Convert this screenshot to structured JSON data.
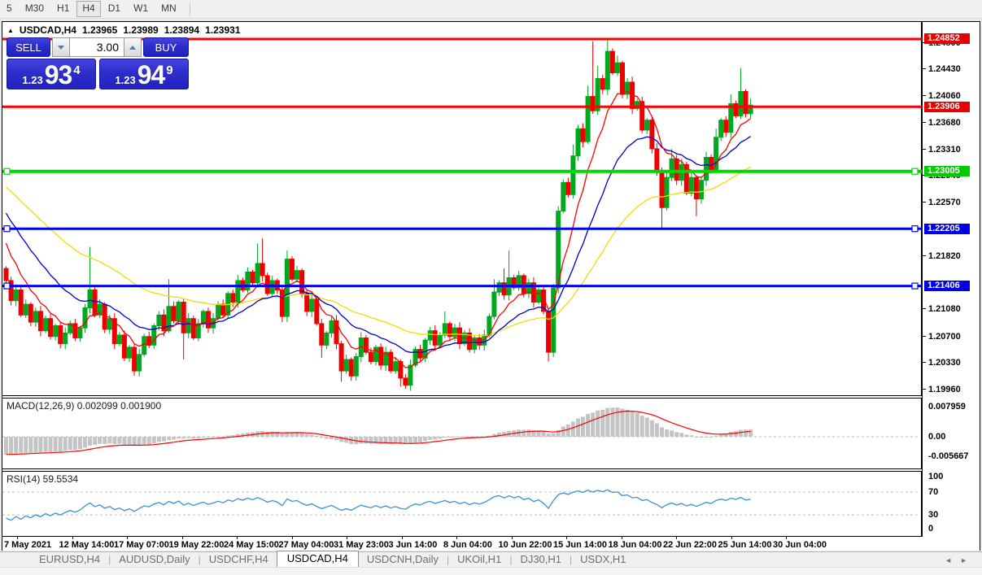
{
  "toolbar": {
    "buttons": [
      "5",
      "M30",
      "H1",
      "H4",
      "D1",
      "W1",
      "MN"
    ],
    "active": "H4"
  },
  "title": {
    "symbol": "USDCAD,H4",
    "open": "1.23965",
    "high": "1.23989",
    "low": "1.23894",
    "close": "1.23931"
  },
  "trade_panel": {
    "sell_label": "SELL",
    "buy_label": "BUY",
    "volume": "3.00",
    "sell_price": {
      "small": "1.23",
      "big": "93",
      "sup": "4"
    },
    "buy_price": {
      "small": "1.23",
      "big": "94",
      "sup": "9"
    }
  },
  "tabs": {
    "items": [
      {
        "label": "EURUSD,H4",
        "active": false
      },
      {
        "label": "AUDUSD,Daily",
        "active": false
      },
      {
        "label": "USDCHF,H4",
        "active": false
      },
      {
        "label": "USDCAD,H4",
        "active": true
      },
      {
        "label": "USDCNH,Daily",
        "active": false
      },
      {
        "label": "UKOil,H1",
        "active": false
      },
      {
        "label": "DJ30,H1",
        "active": false
      },
      {
        "label": "USDX,H1",
        "active": false
      }
    ],
    "scroll_left": "◄",
    "scroll_right": "►"
  },
  "colors": {
    "bull": "#00a81f",
    "bear": "#ee0000",
    "macd_bar": "#c4c4c4",
    "macd_signal": "#ff0000",
    "rsi_line": "#3a90d8",
    "level_dash": "#bdbdbd"
  },
  "chart_data": {
    "type": "candlestick",
    "symbol": "USDCAD",
    "timeframe": "H4",
    "price_axis": {
      "pmax": 1.2509,
      "pmin": 1.1988,
      "ticks": [
        {
          "label": "1.24800",
          "p": 1.248
        },
        {
          "label": "1.24430",
          "p": 1.2443
        },
        {
          "label": "1.24060",
          "p": 1.2406
        },
        {
          "label": "1.23680",
          "p": 1.2368
        },
        {
          "label": "1.23310",
          "p": 1.2331
        },
        {
          "label": "1.22940",
          "p": 1.2294
        },
        {
          "label": "1.22570",
          "p": 1.2257
        },
        {
          "label": "1.21820",
          "p": 1.2182
        },
        {
          "label": "1.21080",
          "p": 1.2108
        },
        {
          "label": "1.20700",
          "p": 1.207
        },
        {
          "label": "1.20330",
          "p": 1.2033
        },
        {
          "label": "1.19960",
          "p": 1.1996
        }
      ]
    },
    "x_labels": [
      "7 May 2021",
      "12 May 14:00",
      "17 May 07:00",
      "19 May 22:00",
      "24 May 15:00",
      "27 May 04:00",
      "31 May 23:00",
      "3 Jun 14:00",
      "8 Jun 04:00",
      "10 Jun 22:00",
      "15 Jun 14:00",
      "18 Jun 04:00",
      "22 Jun 22:00",
      "25 Jun 14:00",
      "30 Jun 04:00"
    ],
    "hlines": [
      {
        "price": 1.24852,
        "label": "1.24852",
        "color": "#ff0000",
        "badge": "#e80000",
        "width": 3,
        "selected": false
      },
      {
        "price": 1.23906,
        "label": "1.23906",
        "color": "#ff0000",
        "badge": "#e80000",
        "width": 3,
        "selected": false
      },
      {
        "price": 1.23005,
        "label": "1.23005",
        "color": "#00d800",
        "badge": "#00cc00",
        "width": 4,
        "selected": true
      },
      {
        "price": 1.22205,
        "label": "1.22205",
        "color": "#0000ff",
        "badge": "#0000e8",
        "width": 3,
        "selected": true
      },
      {
        "price": 1.21406,
        "label": "1.21406",
        "color": "#0000ff",
        "badge": "#0000e8",
        "width": 3,
        "selected": true
      }
    ],
    "moving_averages": [
      {
        "name": "slow-ma",
        "period": 45,
        "seed": 1.2285,
        "color": "#f0dc00"
      },
      {
        "name": "medium-ma",
        "period": 20,
        "seed": 1.2252,
        "color": "#0000c8"
      },
      {
        "name": "fast-ma",
        "period": 8,
        "seed": 1.2215,
        "color": "#ff0000"
      }
    ],
    "candles": {
      "first_open": 1.2165,
      "closes": [
        1.2148,
        1.212,
        1.2135,
        1.21,
        1.2115,
        1.209,
        1.2105,
        1.2078,
        1.2095,
        1.207,
        1.2085,
        1.206,
        1.2075,
        1.2088,
        1.2068,
        1.2082,
        1.211,
        1.2135,
        1.21,
        1.2115,
        1.208,
        1.2095,
        1.206,
        1.2072,
        1.204,
        1.2055,
        1.2022,
        1.2045,
        1.207,
        1.2058,
        1.2085,
        1.21,
        1.2078,
        1.2112,
        1.2092,
        1.2118,
        1.2075,
        1.2095,
        1.2068,
        1.2088,
        1.2105,
        1.2082,
        1.2095,
        1.2115,
        1.21,
        1.213,
        1.2118,
        1.2148,
        1.2135,
        1.216,
        1.2145,
        1.2172,
        1.2155,
        1.213,
        1.2148,
        1.2135,
        1.2098,
        1.2178,
        1.215,
        1.2162,
        1.213,
        1.2105,
        1.2122,
        1.2088,
        1.2058,
        1.2075,
        1.2092,
        1.206,
        1.2022,
        1.2038,
        1.2015,
        1.2042,
        1.2068,
        1.2048,
        1.2035,
        1.2055,
        1.203,
        1.2048,
        1.2022,
        1.2035,
        1.2012,
        1.2002,
        1.203,
        1.2052,
        1.204,
        1.2065,
        1.2078,
        1.2058,
        1.2072,
        1.2088,
        1.207,
        1.2082,
        1.206,
        1.2075,
        1.2052,
        1.2068,
        1.2058,
        1.2072,
        1.2098,
        1.2132,
        1.2145,
        1.2128,
        1.2152,
        1.2138,
        1.2155,
        1.213,
        1.2145,
        1.2118,
        1.2135,
        1.2105,
        1.2048,
        1.2138,
        1.2245,
        1.2285,
        1.2268,
        1.2322,
        1.236,
        1.2342,
        1.2405,
        1.2385,
        1.243,
        1.2415,
        1.2468,
        1.2438,
        1.2452,
        1.2408,
        1.2425,
        1.2388,
        1.2398,
        1.2358,
        1.2372,
        1.2332,
        1.2302,
        1.225,
        1.2292,
        1.2318,
        1.2288,
        1.231,
        1.227,
        1.2292,
        1.2262,
        1.2288,
        1.232,
        1.2302,
        1.2348,
        1.2372,
        1.2355,
        1.2395,
        1.2378,
        1.2412,
        1.2381,
        1.2393
      ],
      "high_overrides": {
        "17": 1.2195,
        "33": 1.215,
        "51": 1.22,
        "52": 1.2207,
        "57": 1.219,
        "89": 1.2105,
        "99": 1.215,
        "101": 1.2165,
        "102": 1.219,
        "112": 1.2252,
        "115": 1.2338,
        "118": 1.242,
        "119": 1.2482,
        "120": 1.2448,
        "122": 1.2487,
        "124": 1.2462,
        "135": 1.2332,
        "144": 1.236,
        "147": 1.2408,
        "149": 1.2445,
        "151": 1.2402
      },
      "low_overrides": {
        "26": 1.2015,
        "36": 1.2038,
        "56": 1.209,
        "64": 1.204,
        "68": 1.2007,
        "70": 1.2008,
        "80": 1.2,
        "81": 1.1997,
        "110": 1.2035,
        "133": 1.2222,
        "140": 1.2238
      }
    },
    "macd": {
      "label": "MACD(12,26,9) 0.002099 0.001900",
      "fast": 12,
      "slow": 26,
      "signal": 9,
      "seed_fast": 1.216,
      "seed_slow": 1.2218,
      "axis": {
        "max": "0.007959",
        "zero": "0.00",
        "min": "-0.005667"
      }
    },
    "rsi": {
      "label": "RSI(14) 59.5534",
      "period": 14,
      "seed_gain": 0.0003,
      "seed_loss": 0.0008,
      "levels": [
        70,
        30
      ],
      "axis": [
        "100",
        "70",
        "30",
        "0"
      ]
    }
  }
}
